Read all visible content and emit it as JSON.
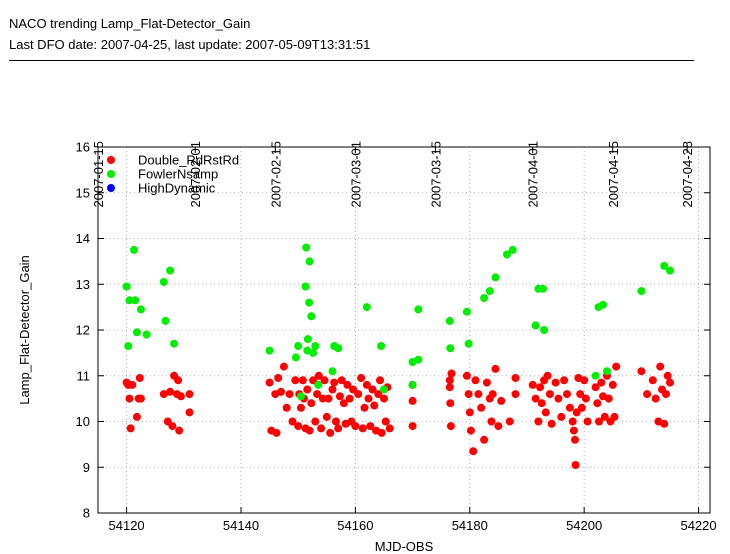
{
  "header": {
    "title": "NACO trending Lamp_Flat-Detector_Gain",
    "subtitle": "Last DFO date: 2007-04-25, last update: 2007-05-09T13:31:51"
  },
  "chart_data": {
    "type": "scatter",
    "xlabel": "MJD-OBS",
    "ylabel": "Lamp_Flat-Detector_Gain",
    "xlim": [
      54115,
      54222
    ],
    "ylim": [
      8,
      16
    ],
    "grid": true,
    "legend_placement": "top-left",
    "x_ticks": [
      54120,
      54140,
      54160,
      54180,
      54200,
      54220
    ],
    "y_ticks": [
      8,
      9,
      10,
      11,
      12,
      13,
      14,
      15,
      16
    ],
    "top_axis_dates": [
      {
        "label": "2007-01-15",
        "mjd": 54115
      },
      {
        "label": "2007-02-01",
        "mjd": 54132
      },
      {
        "label": "2007-02-15",
        "mjd": 54146
      },
      {
        "label": "2007-03-01",
        "mjd": 54160
      },
      {
        "label": "2007-03-15",
        "mjd": 54174
      },
      {
        "label": "2007-04-01",
        "mjd": 54191
      },
      {
        "label": "2007-04-15",
        "mjd": 54205
      },
      {
        "label": "2007-04-28",
        "mjd": 54218
      }
    ],
    "series": [
      {
        "name": "Double_RdRstRd",
        "color": "#ff0000",
        "points": [
          [
            54120,
            10.85
          ],
          [
            54120.3,
            10.8
          ],
          [
            54120.5,
            10.5
          ],
          [
            54120.7,
            9.85
          ],
          [
            54121,
            10.8
          ],
          [
            54121.8,
            10.1
          ],
          [
            54122.1,
            10.5
          ],
          [
            54122.3,
            10.95
          ],
          [
            54122.5,
            10.5
          ],
          [
            54126.5,
            10.6
          ],
          [
            54127.2,
            10.0
          ],
          [
            54127.6,
            10.65
          ],
          [
            54128,
            9.9
          ],
          [
            54128.3,
            11.0
          ],
          [
            54128.8,
            10.6
          ],
          [
            54129.2,
            9.8
          ],
          [
            54129,
            10.9
          ],
          [
            54129.5,
            10.55
          ],
          [
            54131,
            10.2
          ],
          [
            54131,
            10.6
          ],
          [
            54145,
            10.85
          ],
          [
            54145.3,
            9.8
          ],
          [
            54146,
            10.6
          ],
          [
            54146.2,
            9.75
          ],
          [
            54146.5,
            10.95
          ],
          [
            54147,
            10.65
          ],
          [
            54147.5,
            11.2
          ],
          [
            54148,
            10.3
          ],
          [
            54148.5,
            10.6
          ],
          [
            54149,
            10.0
          ],
          [
            54149.5,
            10.9
          ],
          [
            54150,
            9.9
          ],
          [
            54150.2,
            10.6
          ],
          [
            54150.5,
            10.3
          ],
          [
            54150.8,
            10.9
          ],
          [
            54151,
            10.5
          ],
          [
            54151.3,
            9.85
          ],
          [
            54151.6,
            10.7
          ],
          [
            54152,
            9.8
          ],
          [
            54152.3,
            10.4
          ],
          [
            54152.6,
            10.9
          ],
          [
            54153,
            10.0
          ],
          [
            54153.3,
            10.6
          ],
          [
            54153.6,
            11.0
          ],
          [
            54154,
            9.85
          ],
          [
            54154.3,
            10.5
          ],
          [
            54154.6,
            10.9
          ],
          [
            54155,
            10.1
          ],
          [
            54155.3,
            10.5
          ],
          [
            54155.6,
            9.75
          ],
          [
            54156,
            10.7
          ],
          [
            54156.3,
            10.85
          ],
          [
            54156.6,
            10.0
          ],
          [
            54157,
            9.85
          ],
          [
            54157.3,
            10.55
          ],
          [
            54157.6,
            10.9
          ],
          [
            54158,
            10.4
          ],
          [
            54158.3,
            9.95
          ],
          [
            54158.6,
            10.8
          ],
          [
            54159,
            10.5
          ],
          [
            54159.3,
            10.0
          ],
          [
            54159.6,
            10.7
          ],
          [
            54160,
            9.9
          ],
          [
            54160.5,
            10.6
          ],
          [
            54161,
            10.95
          ],
          [
            54161.3,
            9.85
          ],
          [
            54161.6,
            10.3
          ],
          [
            54162,
            10.8
          ],
          [
            54162.3,
            10.5
          ],
          [
            54162.6,
            9.9
          ],
          [
            54163,
            10.7
          ],
          [
            54163.3,
            10.35
          ],
          [
            54163.6,
            9.8
          ],
          [
            54164,
            10.6
          ],
          [
            54164.3,
            10.9
          ],
          [
            54164.6,
            9.75
          ],
          [
            54165,
            10.5
          ],
          [
            54165.3,
            10.0
          ],
          [
            54165.6,
            10.75
          ],
          [
            54166,
            9.85
          ],
          [
            54170,
            10.8
          ],
          [
            54170,
            10.45
          ],
          [
            54170,
            9.9
          ],
          [
            54176.5,
            10.9
          ],
          [
            54176.6,
            10.4
          ],
          [
            54176.7,
            9.9
          ],
          [
            54176.8,
            11.05
          ],
          [
            54176.5,
            10.75
          ],
          [
            54179.5,
            11.0
          ],
          [
            54179.8,
            10.6
          ],
          [
            54180,
            10.2
          ],
          [
            54180.2,
            9.8
          ],
          [
            54180.6,
            9.35
          ],
          [
            54181,
            10.9
          ],
          [
            54181.5,
            10.6
          ],
          [
            54182,
            10.3
          ],
          [
            54182.5,
            9.6
          ],
          [
            54183,
            10.85
          ],
          [
            54183.5,
            10.5
          ],
          [
            54183.8,
            10.0
          ],
          [
            54184,
            10.6
          ],
          [
            54184.5,
            11.15
          ],
          [
            54185,
            9.9
          ],
          [
            54185.5,
            10.45
          ],
          [
            54187,
            10.0
          ],
          [
            54188,
            10.95
          ],
          [
            54188,
            10.6
          ],
          [
            54191,
            10.8
          ],
          [
            54191.5,
            10.5
          ],
          [
            54192,
            10.0
          ],
          [
            54192.3,
            10.75
          ],
          [
            54192.6,
            10.4
          ],
          [
            54193,
            10.9
          ],
          [
            54193.3,
            10.2
          ],
          [
            54193.6,
            11.0
          ],
          [
            54194,
            10.6
          ],
          [
            54194.3,
            9.95
          ],
          [
            54195,
            10.85
          ],
          [
            54195.5,
            10.5
          ],
          [
            54196,
            10.1
          ],
          [
            54196.5,
            10.9
          ],
          [
            54197,
            10.6
          ],
          [
            54197.5,
            10.3
          ],
          [
            54198,
            10.0
          ],
          [
            54198.2,
            9.8
          ],
          [
            54198.4,
            9.6
          ],
          [
            54198.5,
            9.05
          ],
          [
            54198.7,
            10.2
          ],
          [
            54199,
            10.95
          ],
          [
            54199.3,
            10.6
          ],
          [
            54199.6,
            10.3
          ],
          [
            54200,
            10.9
          ],
          [
            54200.3,
            10.5
          ],
          [
            54200.6,
            10.0
          ],
          [
            54202,
            10.75
          ],
          [
            54202.3,
            10.4
          ],
          [
            54202.6,
            10.0
          ],
          [
            54203,
            10.85
          ],
          [
            54203.3,
            10.55
          ],
          [
            54203.6,
            10.1
          ],
          [
            54204,
            11.0
          ],
          [
            54204.3,
            10.5
          ],
          [
            54204.6,
            10.0
          ],
          [
            54205,
            10.8
          ],
          [
            54205.3,
            10.1
          ],
          [
            54205.6,
            11.2
          ],
          [
            54210,
            11.1
          ],
          [
            54211,
            10.6
          ],
          [
            54212,
            10.9
          ],
          [
            54212.5,
            10.5
          ],
          [
            54213,
            10.0
          ],
          [
            54213.3,
            11.2
          ],
          [
            54213.6,
            10.7
          ],
          [
            54214,
            9.95
          ],
          [
            54214.3,
            10.6
          ],
          [
            54214.6,
            11.0
          ],
          [
            54215,
            10.85
          ]
        ]
      },
      {
        "name": "FowlerNsamp",
        "color": "#00ee00",
        "points": [
          [
            54120,
            12.95
          ],
          [
            54120.3,
            11.65
          ],
          [
            54120.5,
            12.65
          ],
          [
            54121.3,
            13.75
          ],
          [
            54121.5,
            12.65
          ],
          [
            54121.8,
            11.95
          ],
          [
            54122.5,
            12.45
          ],
          [
            54123.5,
            11.9
          ],
          [
            54126.5,
            13.05
          ],
          [
            54126.8,
            12.2
          ],
          [
            54127.6,
            13.3
          ],
          [
            54128.3,
            11.7
          ],
          [
            54145,
            11.55
          ],
          [
            54149.6,
            11.4
          ],
          [
            54150,
            11.65
          ],
          [
            54150.5,
            10.55
          ],
          [
            54151.3,
            12.95
          ],
          [
            54151.4,
            13.8
          ],
          [
            54151.6,
            11.55
          ],
          [
            54151.7,
            11.8
          ],
          [
            54151.9,
            12.6
          ],
          [
            54152,
            13.5
          ],
          [
            54152.3,
            12.3
          ],
          [
            54152.6,
            11.5
          ],
          [
            54153,
            11.65
          ],
          [
            54153.5,
            10.8
          ],
          [
            54156,
            11.1
          ],
          [
            54156.3,
            11.65
          ],
          [
            54157,
            11.6
          ],
          [
            54162,
            12.5
          ],
          [
            54164.5,
            11.65
          ],
          [
            54165,
            10.7
          ],
          [
            54170,
            10.8
          ],
          [
            54170,
            11.3
          ],
          [
            54171,
            12.45
          ],
          [
            54171,
            11.35
          ],
          [
            54176.5,
            12.2
          ],
          [
            54176.6,
            11.6
          ],
          [
            54179.5,
            12.4
          ],
          [
            54179.8,
            11.7
          ],
          [
            54182.5,
            12.7
          ],
          [
            54183.5,
            12.85
          ],
          [
            54184.5,
            13.15
          ],
          [
            54186.5,
            13.65
          ],
          [
            54187.5,
            13.75
          ],
          [
            54191.5,
            12.1
          ],
          [
            54192,
            12.9
          ],
          [
            54192.8,
            12.9
          ],
          [
            54193,
            12.0
          ],
          [
            54202,
            11.0
          ],
          [
            54202.5,
            12.5
          ],
          [
            54203.3,
            12.55
          ],
          [
            54204,
            11.1
          ],
          [
            54210,
            12.85
          ],
          [
            54214,
            13.4
          ],
          [
            54215,
            13.3
          ]
        ]
      },
      {
        "name": "HighDynamic",
        "color": "#0000ff",
        "points": []
      }
    ]
  }
}
